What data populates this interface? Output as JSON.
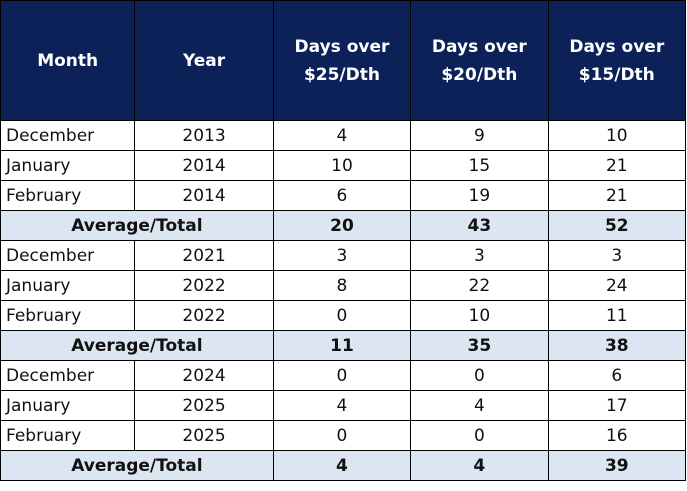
{
  "chart_data": {
    "type": "table",
    "columns": [
      "Month",
      "Year",
      "Days over $25/Dth",
      "Days over $20/Dth",
      "Days over $15/Dth"
    ],
    "header_lines": [
      [
        "Month"
      ],
      [
        "Year"
      ],
      [
        "Days over",
        "$25/Dth"
      ],
      [
        "Days over",
        "$20/Dth"
      ],
      [
        "Days over",
        "$15/Dth"
      ]
    ],
    "groups": [
      {
        "rows": [
          {
            "month": "December",
            "year": "2013",
            "d25": "4",
            "d20": "9",
            "d15": "10"
          },
          {
            "month": "January",
            "year": "2014",
            "d25": "10",
            "d20": "15",
            "d15": "21"
          },
          {
            "month": "February",
            "year": "2014",
            "d25": "6",
            "d20": "19",
            "d15": "21"
          }
        ],
        "total": {
          "label": "Average/Total",
          "d25": "20",
          "d20": "43",
          "d15": "52"
        }
      },
      {
        "rows": [
          {
            "month": "December",
            "year": "2021",
            "d25": "3",
            "d20": "3",
            "d15": "3"
          },
          {
            "month": "January",
            "year": "2022",
            "d25": "8",
            "d20": "22",
            "d15": "24"
          },
          {
            "month": "February",
            "year": "2022",
            "d25": "0",
            "d20": "10",
            "d15": "11"
          }
        ],
        "total": {
          "label": "Average/Total",
          "d25": "11",
          "d20": "35",
          "d15": "38"
        }
      },
      {
        "rows": [
          {
            "month": "December",
            "year": "2024",
            "d25": "0",
            "d20": "0",
            "d15": "6"
          },
          {
            "month": "January",
            "year": "2025",
            "d25": "4",
            "d20": "4",
            "d15": "17"
          },
          {
            "month": "February",
            "year": "2025",
            "d25": "0",
            "d20": "0",
            "d15": "16"
          }
        ],
        "total": {
          "label": "Average/Total",
          "d25": "4",
          "d20": "4",
          "d15": "39"
        }
      }
    ]
  },
  "colors": {
    "header_background": "#0b2157",
    "header_text": "#ffffff",
    "total_row_background": "#dce6f2"
  }
}
